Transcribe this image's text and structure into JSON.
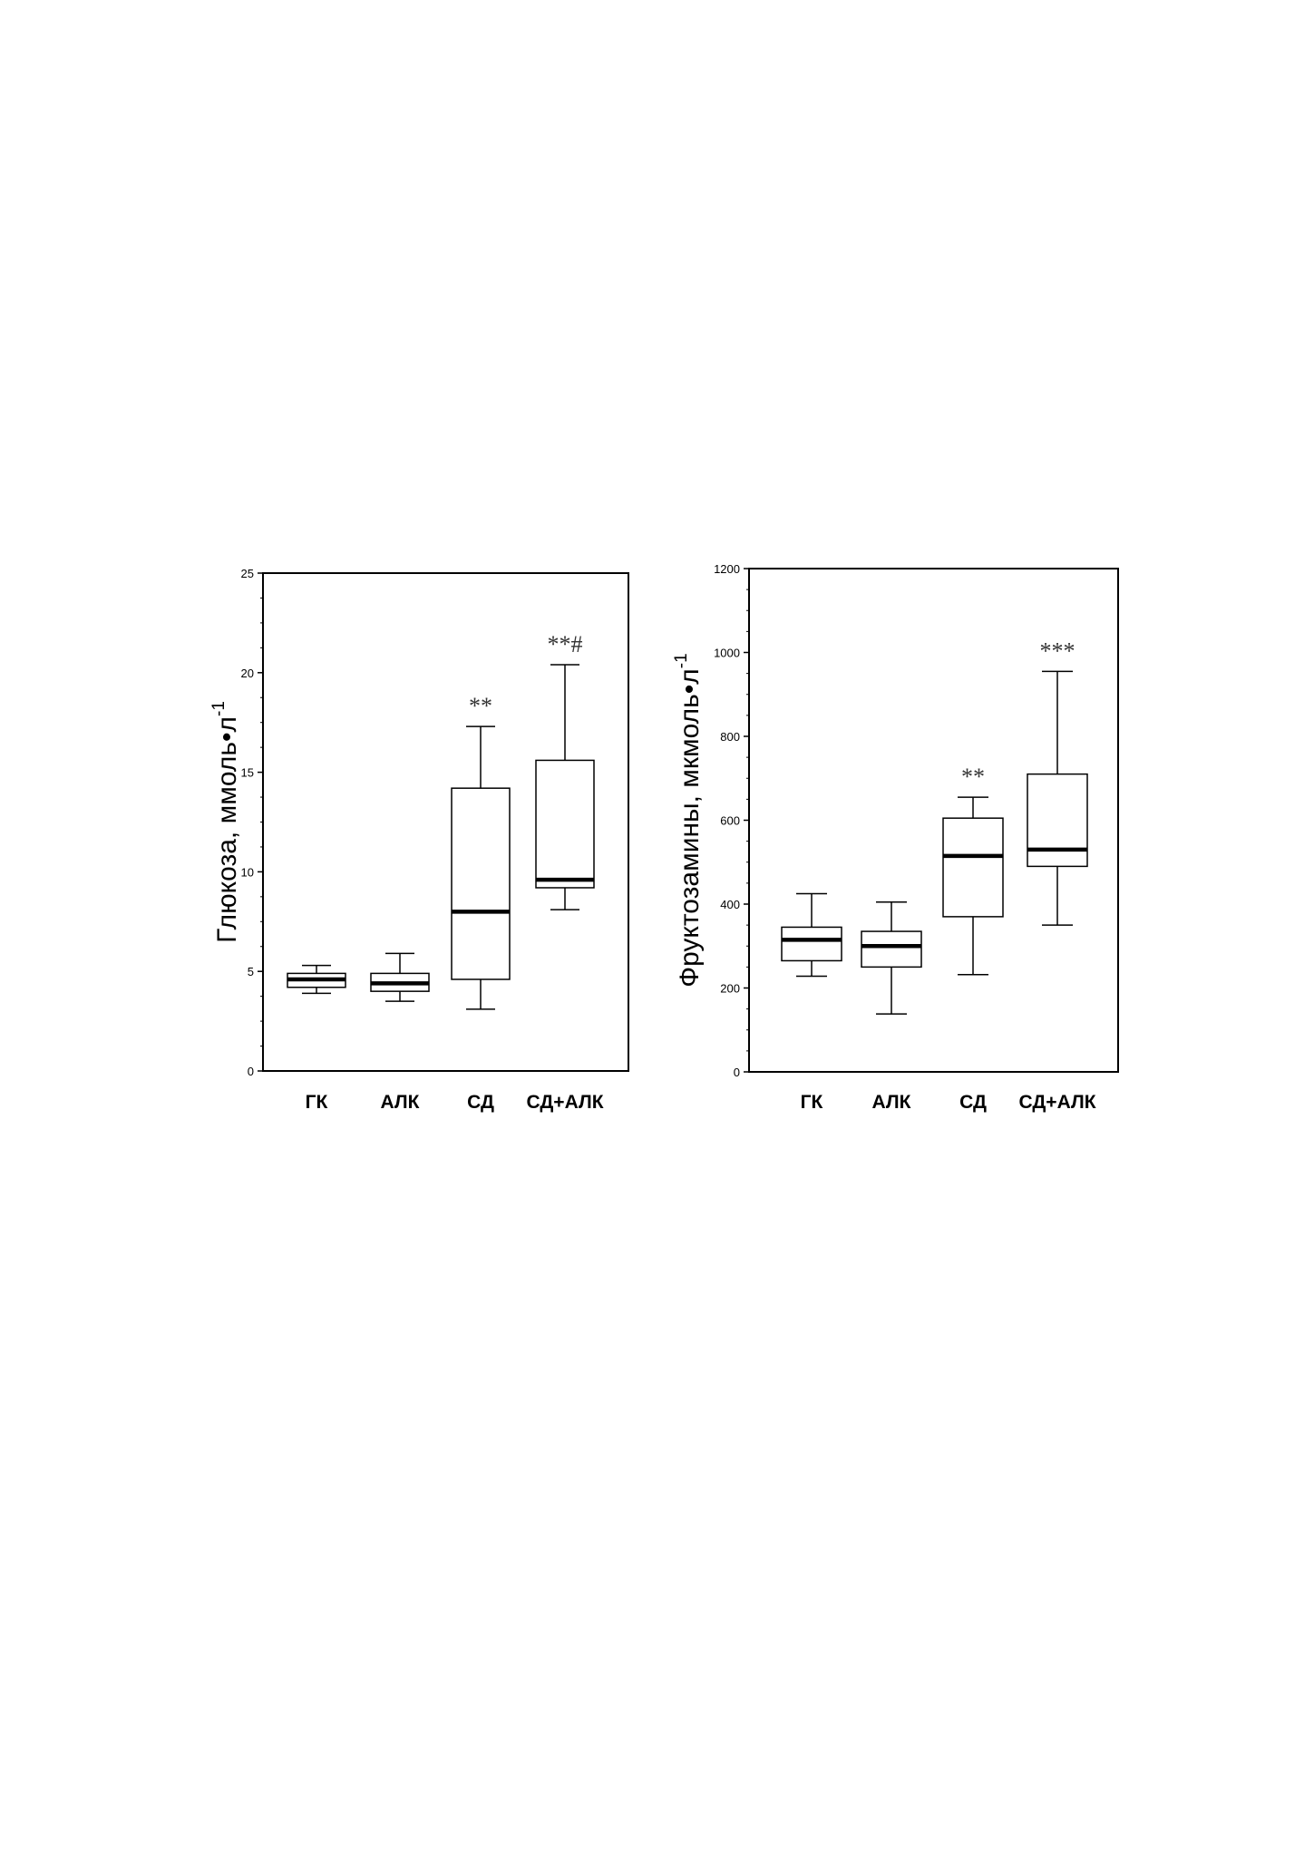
{
  "chart_data": [
    {
      "type": "boxplot",
      "title": "",
      "xlabel": "",
      "ylabel": "Глюкоза, ммоль•л",
      "ylabel_superscript": "-1",
      "ylim": [
        0,
        25
      ],
      "yticks": [
        "0",
        "5",
        "10",
        "15",
        "20",
        "25"
      ],
      "categories": [
        "ГК",
        "АЛК",
        "СД",
        "СД+АЛК"
      ],
      "boxes": [
        {
          "whisker_low": 3.9,
          "q1": 4.2,
          "median": 4.6,
          "q3": 4.9,
          "whisker_high": 5.3,
          "annotation": ""
        },
        {
          "whisker_low": 3.5,
          "q1": 4.0,
          "median": 4.4,
          "q3": 4.9,
          "whisker_high": 5.9,
          "annotation": ""
        },
        {
          "whisker_low": 3.1,
          "q1": 4.6,
          "median": 8.0,
          "q3": 14.2,
          "whisker_high": 17.3,
          "annotation": "**"
        },
        {
          "whisker_low": 8.1,
          "q1": 9.2,
          "median": 9.6,
          "q3": 15.6,
          "whisker_high": 20.4,
          "annotation": "**#"
        }
      ]
    },
    {
      "type": "boxplot",
      "title": "",
      "xlabel": "",
      "ylabel": "Фруктозамины, мкмоль•л",
      "ylabel_superscript": "-1",
      "ylim": [
        0,
        1200
      ],
      "yticks": [
        "0",
        "200",
        "400",
        "600",
        "800",
        "1000",
        "1200"
      ],
      "categories": [
        "ГК",
        "АЛК",
        "СД",
        "СД+АЛК"
      ],
      "boxes": [
        {
          "whisker_low": 228,
          "q1": 265,
          "median": 315,
          "q3": 345,
          "whisker_high": 425,
          "annotation": ""
        },
        {
          "whisker_low": 138,
          "q1": 250,
          "median": 300,
          "q3": 335,
          "whisker_high": 405,
          "annotation": ""
        },
        {
          "whisker_low": 232,
          "q1": 370,
          "median": 515,
          "q3": 605,
          "whisker_high": 655,
          "annotation": "**"
        },
        {
          "whisker_low": 350,
          "q1": 490,
          "median": 530,
          "q3": 710,
          "whisker_high": 955,
          "annotation": "***"
        }
      ]
    }
  ]
}
